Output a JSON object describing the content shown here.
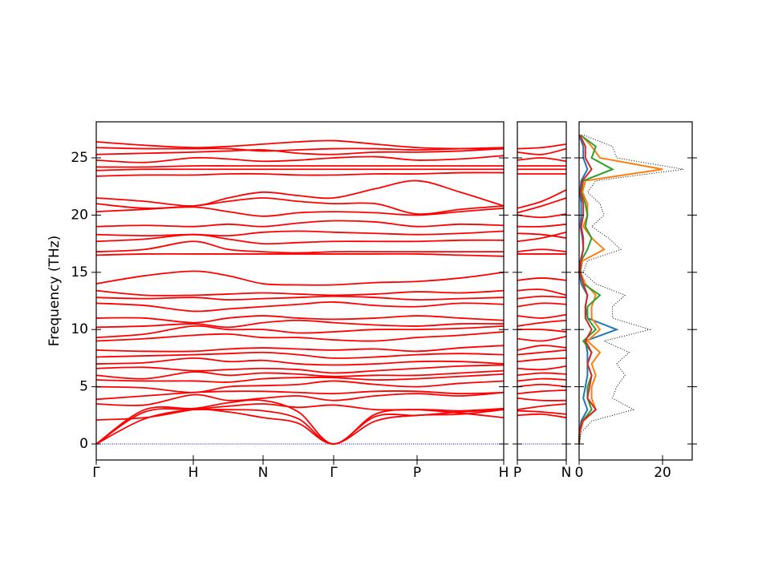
{
  "chart_data": [
    {
      "type": "bands",
      "ylabel": "Frequency (THz)",
      "color": "#ff0000",
      "hline": 0,
      "hline_color": "#0000ff",
      "x": [
        0,
        0.605,
        1.21,
        1.645,
        2.08,
        2.52,
        2.96,
        3.48,
        4.0,
        4.54,
        5.08
      ],
      "xlim": [
        0,
        5.08
      ],
      "xticks": [
        {
          "value": 0,
          "label": "Γ"
        },
        {
          "value": 1.21,
          "label": "H"
        },
        {
          "value": 2.08,
          "label": "N"
        },
        {
          "value": 2.96,
          "label": "Γ"
        },
        {
          "value": 4.0,
          "label": "P"
        },
        {
          "value": 5.08,
          "label": "H"
        }
      ],
      "ylim": [
        -1.4,
        28.15
      ],
      "yticks": [
        0,
        5,
        10,
        15,
        20,
        25
      ],
      "series": [
        {
          "values": [
            0,
            2.2,
            3.0,
            2.8,
            2.3,
            1.8,
            0,
            2.0,
            2.5,
            2.6,
            3.0
          ]
        },
        {
          "values": [
            0,
            2.8,
            3.0,
            3.0,
            2.9,
            2.2,
            0,
            2.4,
            2.5,
            2.8,
            3.0
          ]
        },
        {
          "values": [
            0,
            3.0,
            3.1,
            3.6,
            3.8,
            2.8,
            0,
            2.6,
            3.0,
            2.9,
            3.1
          ]
        },
        {
          "values": [
            2.1,
            2.3,
            3.0,
            3.3,
            3.5,
            3.2,
            3.4,
            3.0,
            3.0,
            2.7,
            2.3
          ]
        },
        {
          "values": [
            3.5,
            3.4,
            4.3,
            3.8,
            4.0,
            4.2,
            3.8,
            4.2,
            4.4,
            4.2,
            4.5
          ]
        },
        {
          "values": [
            3.9,
            4.2,
            4.5,
            4.6,
            4.6,
            4.5,
            4.4,
            4.6,
            4.6,
            4.4,
            4.5
          ]
        },
        {
          "values": [
            5.0,
            4.9,
            4.5,
            5.0,
            5.1,
            5.2,
            5.5,
            5.2,
            5.0,
            5.3,
            5.5
          ]
        },
        {
          "values": [
            5.6,
            5.5,
            5.5,
            5.4,
            5.7,
            5.8,
            5.8,
            5.6,
            5.7,
            5.9,
            6.1
          ]
        },
        {
          "values": [
            6.0,
            5.7,
            6.3,
            6.0,
            6.2,
            6.1,
            5.9,
            6.0,
            6.0,
            6.2,
            6.4
          ]
        },
        {
          "values": [
            6.6,
            6.7,
            6.4,
            6.5,
            6.6,
            6.5,
            6.2,
            6.4,
            6.6,
            6.8,
            6.9
          ]
        },
        {
          "values": [
            7.0,
            7.1,
            7.5,
            7.2,
            7.3,
            7.0,
            6.9,
            7.0,
            7.2,
            7.2,
            7.0
          ]
        },
        {
          "values": [
            7.6,
            7.7,
            7.8,
            7.9,
            8.0,
            7.8,
            7.5,
            7.6,
            7.8,
            7.9,
            7.8
          ]
        },
        {
          "values": [
            8.2,
            8.1,
            8.1,
            8.3,
            8.4,
            8.3,
            8.2,
            8.3,
            8.1,
            8.4,
            8.6
          ]
        },
        {
          "values": [
            9.0,
            9.2,
            9.5,
            9.6,
            9.3,
            9.3,
            9.1,
            9.0,
            9.3,
            9.5,
            9.8
          ]
        },
        {
          "values": [
            9.3,
            9.6,
            10.3,
            10.0,
            10.0,
            9.7,
            9.8,
            10.0,
            10.0,
            10.1,
            10.3
          ]
        },
        {
          "values": [
            10.2,
            10.3,
            10.5,
            10.2,
            10.6,
            10.8,
            10.6,
            10.4,
            10.3,
            10.5,
            10.5
          ]
        },
        {
          "values": [
            11.0,
            11.0,
            10.6,
            11.0,
            11.2,
            11.0,
            10.9,
            11.0,
            11.2,
            11.0,
            10.8
          ]
        },
        {
          "values": [
            12.3,
            12.1,
            11.6,
            11.8,
            12.0,
            12.2,
            12.4,
            12.1,
            12.0,
            12.3,
            12.2
          ]
        },
        {
          "values": [
            12.8,
            12.7,
            12.8,
            12.6,
            12.7,
            12.8,
            12.9,
            12.8,
            12.6,
            12.7,
            12.8
          ]
        },
        {
          "values": [
            13.4,
            13.0,
            13.0,
            13.1,
            13.2,
            13.1,
            13.0,
            13.1,
            13.3,
            13.2,
            13.4
          ]
        },
        {
          "values": [
            14.0,
            14.7,
            15.1,
            14.7,
            14.0,
            13.9,
            13.9,
            14.1,
            14.2,
            14.5,
            15.0
          ]
        },
        {
          "values": [
            16.5,
            16.6,
            16.6,
            16.6,
            16.6,
            16.6,
            16.6,
            16.6,
            16.6,
            16.5,
            16.4
          ]
        },
        {
          "values": [
            16.8,
            17.0,
            17.7,
            17.0,
            16.8,
            16.7,
            16.8,
            16.8,
            16.8,
            16.8,
            16.8
          ]
        },
        {
          "values": [
            17.7,
            17.9,
            18.3,
            17.9,
            17.5,
            17.6,
            17.7,
            17.7,
            17.7,
            17.8,
            17.8
          ]
        },
        {
          "values": [
            18.3,
            18.2,
            18.3,
            18.2,
            18.5,
            18.6,
            18.5,
            18.4,
            18.3,
            18.4,
            18.6
          ]
        },
        {
          "values": [
            19.0,
            19.1,
            19.0,
            19.2,
            19.0,
            19.3,
            19.5,
            19.4,
            19.0,
            19.2,
            19.1
          ]
        },
        {
          "values": [
            20.3,
            20.5,
            20.7,
            20.3,
            19.9,
            20.2,
            20.3,
            20.2,
            20.0,
            20.3,
            20.6
          ]
        },
        {
          "values": [
            21.0,
            20.6,
            20.8,
            21.2,
            21.5,
            21.2,
            21.0,
            21.0,
            20.1,
            20.5,
            20.8
          ]
        },
        {
          "values": [
            21.5,
            21.2,
            20.8,
            21.5,
            22.0,
            21.7,
            21.5,
            22.3,
            23.0,
            22.0,
            20.8
          ]
        },
        {
          "values": [
            23.4,
            23.5,
            23.5,
            23.6,
            23.6,
            23.5,
            23.5,
            23.6,
            23.6,
            23.7,
            23.7
          ]
        },
        {
          "values": [
            23.9,
            24.0,
            24.0,
            24.0,
            24.0,
            24.0,
            24.0,
            24.0,
            24.0,
            24.0,
            24.0
          ]
        },
        {
          "values": [
            24.2,
            24.2,
            24.3,
            24.3,
            24.3,
            24.3,
            24.3,
            24.3,
            24.3,
            24.3,
            24.3
          ]
        },
        {
          "values": [
            24.8,
            24.6,
            25.0,
            24.9,
            24.7,
            24.8,
            25.0,
            25.1,
            24.8,
            24.9,
            25.2
          ]
        },
        {
          "values": [
            25.3,
            25.4,
            25.5,
            25.6,
            25.7,
            25.4,
            25.3,
            25.5,
            25.5,
            25.6,
            25.8
          ]
        },
        {
          "values": [
            25.9,
            25.8,
            25.8,
            25.8,
            25.6,
            25.7,
            25.8,
            25.8,
            25.7,
            25.8,
            25.9
          ]
        },
        {
          "values": [
            26.4,
            26.1,
            25.9,
            26.0,
            26.2,
            26.4,
            26.5,
            26.2,
            25.9,
            25.8,
            25.8
          ]
        }
      ]
    },
    {
      "type": "bands",
      "color": "#ff0000",
      "hline": 0,
      "hline_color": "#0000ff",
      "x": [
        0,
        0.3,
        0.6
      ],
      "xlim": [
        0,
        0.6
      ],
      "xticks": [
        {
          "value": 0,
          "label": "P"
        },
        {
          "value": 0.6,
          "label": "N"
        }
      ],
      "series": [
        {
          "values": [
            2.5,
            2.6,
            2.3
          ]
        },
        {
          "values": [
            2.9,
            2.8,
            2.6
          ]
        },
        {
          "values": [
            3.0,
            3.3,
            3.5
          ]
        },
        {
          "values": [
            4.0,
            3.8,
            3.8
          ]
        },
        {
          "values": [
            4.4,
            4.6,
            4.7
          ]
        },
        {
          "values": [
            5.0,
            5.2,
            5.0
          ]
        },
        {
          "values": [
            5.5,
            5.7,
            5.6
          ]
        },
        {
          "values": [
            6.0,
            6.2,
            6.1
          ]
        },
        {
          "values": [
            6.6,
            6.5,
            6.8
          ]
        },
        {
          "values": [
            7.2,
            7.4,
            7.5
          ]
        },
        {
          "values": [
            7.8,
            8.0,
            8.2
          ]
        },
        {
          "values": [
            8.2,
            8.6,
            8.4
          ]
        },
        {
          "values": [
            9.2,
            9.0,
            9.4
          ]
        },
        {
          "values": [
            10.0,
            10.0,
            9.8
          ]
        },
        {
          "values": [
            10.3,
            10.6,
            10.8
          ]
        },
        {
          "values": [
            11.2,
            11.0,
            11.3
          ]
        },
        {
          "values": [
            12.0,
            12.3,
            12.2
          ]
        },
        {
          "values": [
            12.7,
            12.9,
            12.8
          ]
        },
        {
          "values": [
            13.4,
            13.5,
            13.0
          ]
        },
        {
          "values": [
            14.3,
            14.5,
            14.3
          ]
        },
        {
          "values": [
            16.6,
            16.6,
            16.6
          ]
        },
        {
          "values": [
            16.8,
            17.0,
            16.8
          ]
        },
        {
          "values": [
            17.7,
            18.0,
            18.5
          ]
        },
        {
          "values": [
            18.4,
            18.3,
            18.0
          ]
        },
        {
          "values": [
            19.0,
            19.0,
            19.2
          ]
        },
        {
          "values": [
            20.0,
            19.8,
            20.1
          ]
        },
        {
          "values": [
            20.2,
            20.8,
            21.5
          ]
        },
        {
          "values": [
            20.6,
            21.2,
            22.2
          ]
        },
        {
          "values": [
            23.6,
            23.6,
            23.6
          ]
        },
        {
          "values": [
            24.0,
            24.0,
            24.0
          ]
        },
        {
          "values": [
            24.3,
            24.3,
            24.3
          ]
        },
        {
          "values": [
            24.8,
            25.0,
            24.7
          ]
        },
        {
          "values": [
            25.5,
            25.3,
            25.8
          ]
        },
        {
          "values": [
            25.8,
            25.9,
            26.2
          ]
        }
      ]
    },
    {
      "type": "dos",
      "y": [
        0,
        1,
        2,
        3,
        4,
        5,
        6,
        7,
        8,
        9,
        10,
        11,
        12,
        13,
        14,
        15,
        16,
        17,
        18,
        19,
        20,
        21,
        22,
        23,
        24,
        25,
        26,
        27
      ],
      "xlim": [
        0,
        27.1
      ],
      "xticks": [
        0,
        20
      ],
      "series": [
        {
          "color": "#1f77b4",
          "values": [
            0,
            0.1,
            0.5,
            2,
            1,
            1.5,
            2,
            2,
            2,
            1.5,
            9,
            2,
            1.5,
            2,
            0.5,
            0,
            0.3,
            1,
            0.8,
            0.3,
            0.5,
            0.5,
            0.2,
            0.5,
            2,
            1,
            1,
            0
          ]
        },
        {
          "color": "#ff7f0e",
          "values": [
            0,
            0.2,
            1,
            4,
            3,
            3,
            4,
            3,
            5,
            2,
            5,
            3,
            3,
            4,
            1.5,
            0.3,
            0.8,
            6,
            3,
            1,
            2,
            2,
            0.8,
            1.5,
            20,
            5,
            3,
            0.5
          ]
        },
        {
          "color": "#2ca02c",
          "values": [
            0,
            0.1,
            0.8,
            3,
            2,
            2,
            3,
            2,
            3,
            1,
            4,
            2,
            2,
            5,
            1,
            0.3,
            0.5,
            2,
            3,
            1.5,
            2,
            1.5,
            0.5,
            1,
            8,
            3,
            4,
            0.3
          ]
        },
        {
          "color": "#d62728",
          "values": [
            0,
            0.1,
            0.8,
            4,
            2,
            2.5,
            3,
            2,
            3,
            1.5,
            3,
            1.5,
            1.5,
            2,
            1,
            0.2,
            0.4,
            1,
            1,
            0.5,
            1,
            1,
            0.3,
            0.8,
            3,
            1.5,
            1.5,
            0.2
          ]
        },
        {
          "color": "#000000",
          "dotted": true,
          "values": [
            0,
            0.5,
            3,
            13,
            8,
            9,
            11,
            9,
            12,
            6,
            17,
            8,
            8,
            11,
            4,
            1,
            2,
            10,
            7,
            3,
            6,
            5,
            2,
            4,
            25,
            9,
            8,
            1
          ]
        }
      ]
    }
  ]
}
